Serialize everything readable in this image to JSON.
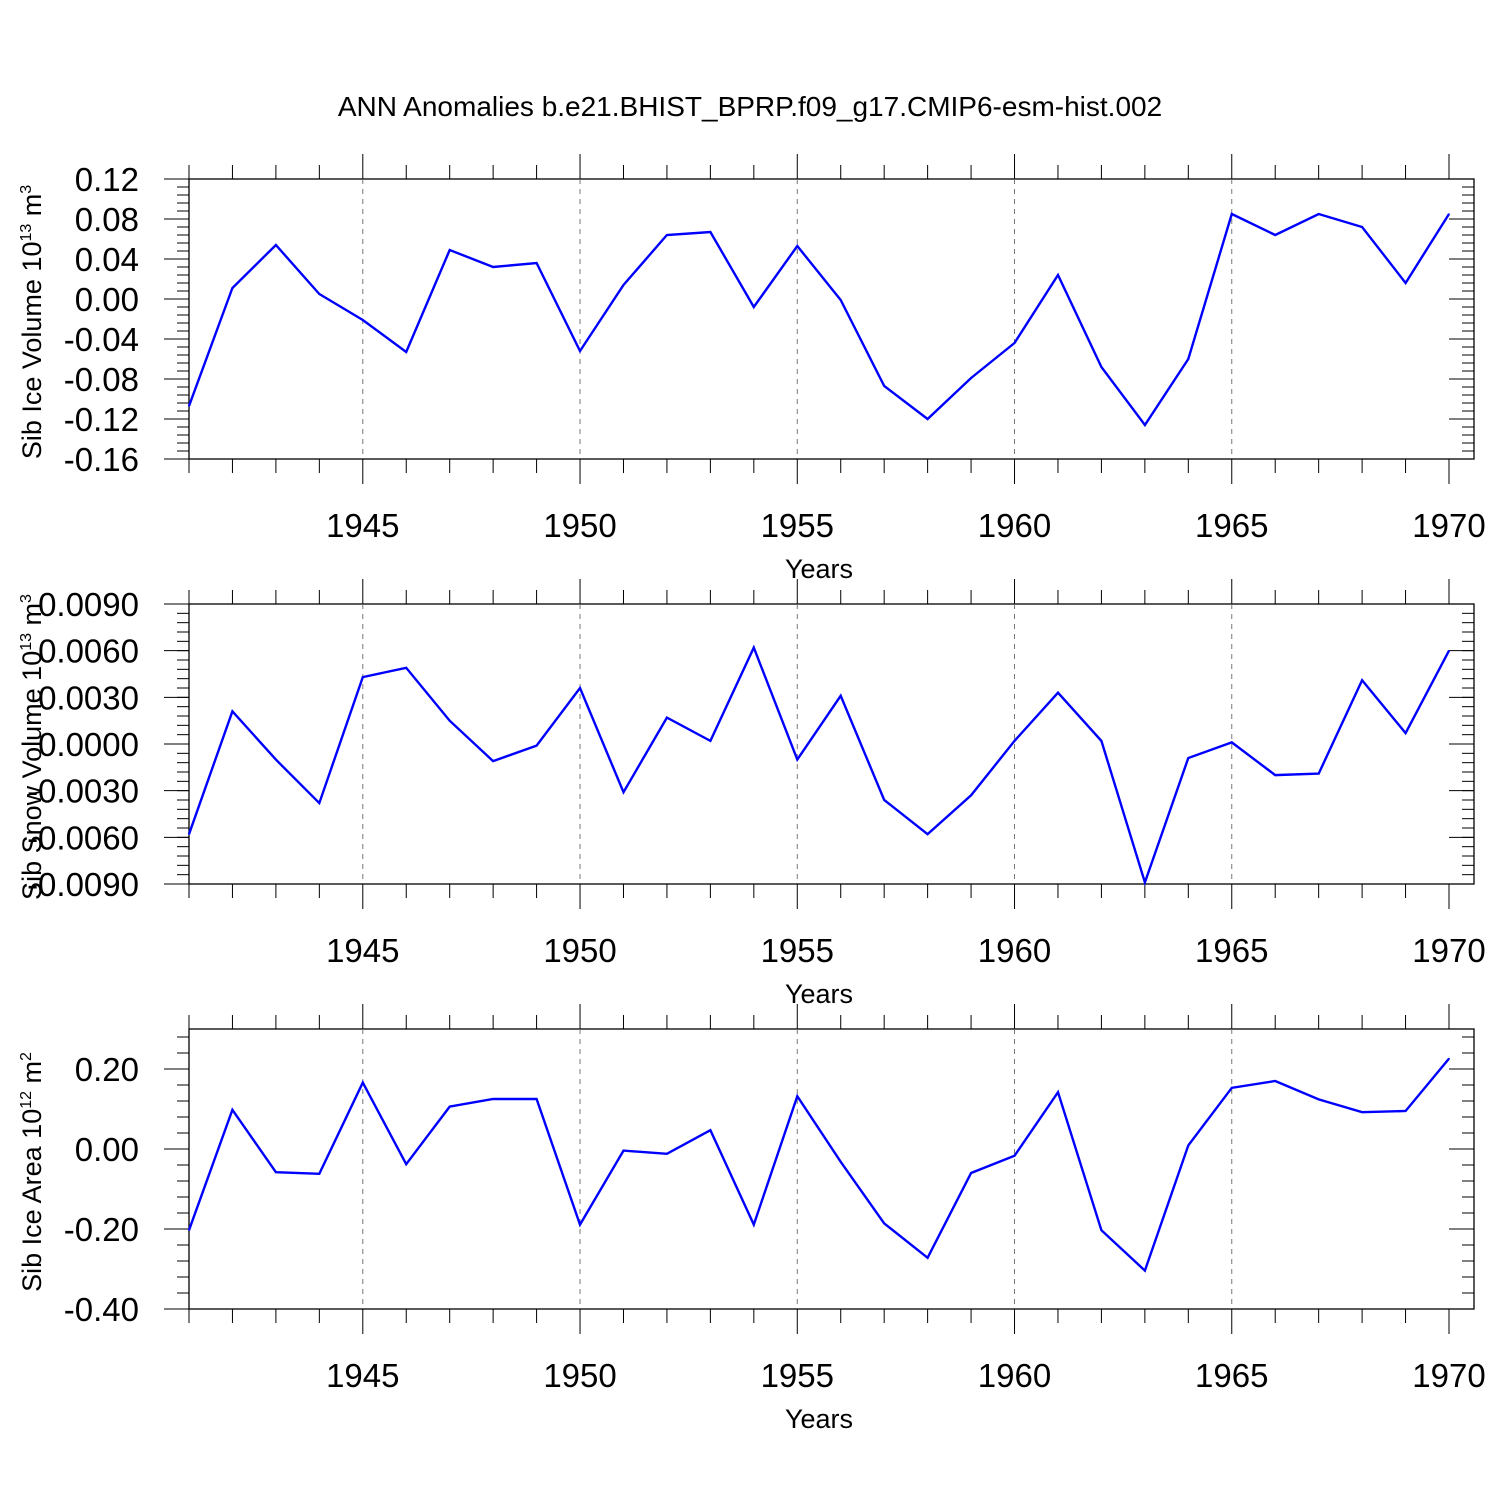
{
  "figure_title": "ANN Anomalies b.e21.BHIST_BPRP.f09_g17.CMIP6-esm-hist.002",
  "chart_data": [
    {
      "type": "line",
      "title": "",
      "xlabel": "Years",
      "ylabel": "Sib Ice Volume 10",
      "ylabel_exp": "13",
      "ylabel_unit": " m",
      "ylabel_unit_exp": "3",
      "xlim": [
        1941,
        1970
      ],
      "ylim": [
        -0.16,
        0.12
      ],
      "x_ticks": [
        1945,
        1950,
        1955,
        1960,
        1965,
        1970
      ],
      "y_ticks": [
        "0.12",
        "0.08",
        "0.04",
        "0.00",
        "-0.04",
        "-0.08",
        "-0.12",
        "-0.16"
      ],
      "grid": "vertical dashed at major x ticks",
      "series": [
        {
          "color": "#0000ff",
          "x": [
            1941,
            1942,
            1943,
            1944,
            1945,
            1946,
            1947,
            1948,
            1949,
            1950,
            1951,
            1952,
            1953,
            1954,
            1955,
            1956,
            1957,
            1958,
            1959,
            1960,
            1961,
            1962,
            1963,
            1964,
            1965,
            1966,
            1967,
            1968,
            1969,
            1970
          ],
          "values": [
            -0.107,
            0.011,
            0.054,
            0.005,
            -0.021,
            -0.053,
            0.049,
            0.032,
            0.036,
            -0.052,
            0.014,
            0.064,
            0.067,
            -0.008,
            0.053,
            -0.001,
            -0.087,
            -0.12,
            -0.079,
            -0.044,
            0.024,
            -0.068,
            -0.126,
            -0.06,
            0.085,
            0.064,
            0.085,
            0.072,
            0.016,
            0.085
          ]
        }
      ]
    },
    {
      "type": "line",
      "title": "",
      "xlabel": "Years",
      "ylabel": "Sib Snow Volume 10",
      "ylabel_exp": "13",
      "ylabel_unit": " m",
      "ylabel_unit_exp": "3",
      "xlim": [
        1941,
        1970
      ],
      "ylim": [
        -0.009,
        0.009
      ],
      "x_ticks": [
        1945,
        1950,
        1955,
        1960,
        1965,
        1970
      ],
      "y_ticks": [
        "0.0090",
        "0.0060",
        "0.0030",
        "0.0000",
        "-0.0030",
        "-0.0060",
        "-0.0090"
      ],
      "grid": "vertical dashed at major x ticks",
      "series": [
        {
          "color": "#0000ff",
          "x": [
            1941,
            1942,
            1943,
            1944,
            1945,
            1946,
            1947,
            1948,
            1949,
            1950,
            1951,
            1952,
            1953,
            1954,
            1955,
            1956,
            1957,
            1958,
            1959,
            1960,
            1961,
            1962,
            1963,
            1964,
            1965,
            1966,
            1967,
            1968,
            1969,
            1970
          ],
          "values": [
            -0.0058,
            0.0021,
            -0.001,
            -0.0038,
            0.0043,
            0.0049,
            0.0015,
            -0.0011,
            -0.0001,
            0.0036,
            -0.0031,
            0.0017,
            0.0002,
            0.0062,
            -0.001,
            0.0031,
            -0.0036,
            -0.0058,
            -0.0033,
            0.0002,
            0.0033,
            0.0002,
            -0.0089,
            -0.0009,
            0.0001,
            -0.002,
            -0.0019,
            0.0041,
            0.0007,
            0.006
          ]
        }
      ]
    },
    {
      "type": "line",
      "title": "",
      "xlabel": "Years",
      "ylabel": "Sib Ice Area 10",
      "ylabel_exp": "12",
      "ylabel_unit": " m",
      "ylabel_unit_exp": "2",
      "xlim": [
        1941,
        1970
      ],
      "ylim": [
        -0.4,
        0.3
      ],
      "x_ticks": [
        1945,
        1950,
        1955,
        1960,
        1965,
        1970
      ],
      "y_ticks": [
        "0.20",
        "0.00",
        "-0.20",
        "-0.40"
      ],
      "grid": "vertical dashed at major x ticks",
      "series": [
        {
          "color": "#0000ff",
          "x": [
            1941,
            1942,
            1943,
            1944,
            1945,
            1946,
            1947,
            1948,
            1949,
            1950,
            1951,
            1952,
            1953,
            1954,
            1955,
            1956,
            1957,
            1958,
            1959,
            1960,
            1961,
            1962,
            1963,
            1964,
            1965,
            1966,
            1967,
            1968,
            1969,
            1970
          ],
          "values": [
            -0.203,
            0.098,
            -0.058,
            -0.062,
            0.166,
            -0.038,
            0.106,
            0.125,
            0.125,
            -0.189,
            -0.004,
            -0.012,
            0.047,
            -0.189,
            0.132,
            -0.032,
            -0.186,
            -0.272,
            -0.06,
            -0.017,
            0.142,
            -0.203,
            -0.304,
            0.009,
            0.153,
            0.17,
            0.124,
            0.092,
            0.095,
            0.226
          ]
        }
      ]
    }
  ]
}
